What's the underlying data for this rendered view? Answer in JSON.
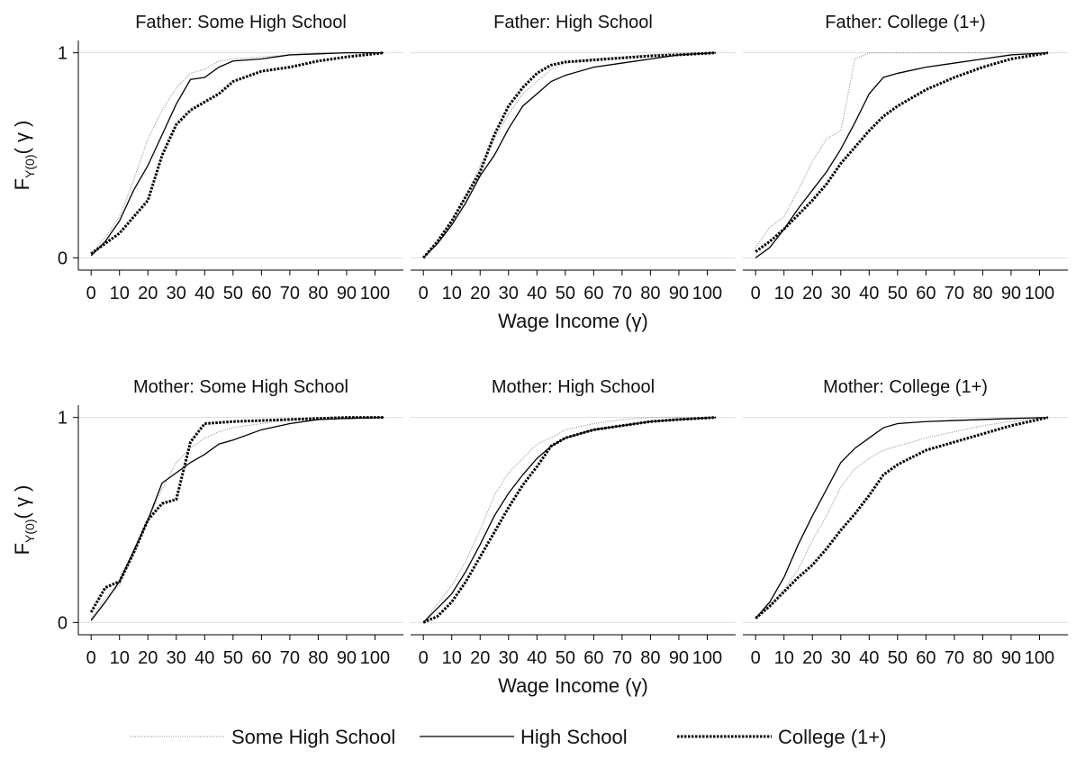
{
  "chart_data": [
    {
      "type": "line",
      "title": "Father: Some High School",
      "ylabel": {
        "text": "F",
        "subscript": "Y(0)",
        "suffix": "( γ )"
      },
      "x": [
        0,
        5,
        10,
        15,
        20,
        25,
        30,
        35,
        40,
        45,
        50,
        60,
        70,
        80,
        90,
        103
      ],
      "xlim": [
        -4.5,
        110
      ],
      "xticks": [
        0,
        10,
        20,
        30,
        40,
        50,
        60,
        70,
        80,
        90,
        100
      ],
      "ylim": [
        -0.06,
        1.06
      ],
      "yticks": [
        0,
        1
      ],
      "grid": true,
      "series": [
        {
          "style": "dotted",
          "values": [
            0.02,
            0.1,
            0.2,
            0.38,
            0.58,
            0.72,
            0.83,
            0.9,
            0.92,
            0.96,
            0.97,
            0.98,
            0.99,
            1,
            1,
            1
          ]
        },
        {
          "style": "solid",
          "values": [
            0.01,
            0.08,
            0.18,
            0.33,
            0.45,
            0.6,
            0.75,
            0.87,
            0.88,
            0.93,
            0.96,
            0.97,
            0.99,
            0.995,
            1,
            1
          ]
        },
        {
          "style": "dashed",
          "values": [
            0.02,
            0.07,
            0.12,
            0.2,
            0.28,
            0.5,
            0.65,
            0.72,
            0.76,
            0.8,
            0.86,
            0.91,
            0.93,
            0.96,
            0.98,
            1
          ]
        }
      ]
    },
    {
      "type": "line",
      "title": "Father: High School",
      "xlabel": "Wage Income (γ)",
      "x": [
        0,
        5,
        10,
        15,
        20,
        25,
        30,
        35,
        40,
        45,
        50,
        60,
        70,
        80,
        90,
        103
      ],
      "xlim": [
        -4.5,
        110
      ],
      "xticks": [
        0,
        10,
        20,
        30,
        40,
        50,
        60,
        70,
        80,
        90,
        100
      ],
      "ylim": [
        -0.06,
        1.06
      ],
      "yticks": [
        0,
        1
      ],
      "grid": true,
      "series": [
        {
          "style": "dotted",
          "values": [
            0,
            0.07,
            0.17,
            0.3,
            0.45,
            0.58,
            0.7,
            0.8,
            0.86,
            0.92,
            0.95,
            0.97,
            0.98,
            0.99,
            1,
            1
          ]
        },
        {
          "style": "solid",
          "values": [
            0,
            0.07,
            0.16,
            0.27,
            0.4,
            0.5,
            0.63,
            0.74,
            0.8,
            0.86,
            0.89,
            0.93,
            0.95,
            0.97,
            0.99,
            1
          ]
        },
        {
          "style": "dashed",
          "values": [
            0,
            0.08,
            0.18,
            0.3,
            0.42,
            0.6,
            0.74,
            0.83,
            0.9,
            0.94,
            0.955,
            0.965,
            0.975,
            0.985,
            0.99,
            1
          ]
        }
      ]
    },
    {
      "type": "line",
      "title": "Father: College (1+)",
      "x": [
        0,
        5,
        10,
        15,
        20,
        25,
        30,
        35,
        40,
        45,
        50,
        60,
        70,
        80,
        90,
        103
      ],
      "xlim": [
        -4.5,
        110
      ],
      "xticks": [
        0,
        10,
        20,
        30,
        40,
        50,
        60,
        70,
        80,
        90,
        100
      ],
      "ylim": [
        -0.06,
        1.06
      ],
      "yticks": [
        0,
        1
      ],
      "grid": true,
      "series": [
        {
          "style": "dotted",
          "values": [
            0.05,
            0.15,
            0.2,
            0.33,
            0.47,
            0.58,
            0.62,
            0.97,
            1,
            1,
            1,
            1,
            1,
            1,
            1,
            1
          ]
        },
        {
          "style": "solid",
          "values": [
            0,
            0.05,
            0.14,
            0.24,
            0.33,
            0.42,
            0.53,
            0.66,
            0.8,
            0.88,
            0.9,
            0.93,
            0.95,
            0.97,
            0.99,
            1
          ]
        },
        {
          "style": "dashed",
          "values": [
            0.03,
            0.08,
            0.14,
            0.21,
            0.28,
            0.36,
            0.46,
            0.54,
            0.62,
            0.69,
            0.74,
            0.82,
            0.88,
            0.93,
            0.97,
            1
          ]
        }
      ]
    },
    {
      "type": "line",
      "title": "Mother: Some High School",
      "ylabel": {
        "text": "F",
        "subscript": "Y(0)",
        "suffix": "( γ )"
      },
      "x": [
        0,
        5,
        10,
        15,
        20,
        25,
        30,
        35,
        40,
        45,
        50,
        60,
        70,
        80,
        90,
        103
      ],
      "xlim": [
        -4.5,
        110
      ],
      "xticks": [
        0,
        10,
        20,
        30,
        40,
        50,
        60,
        70,
        80,
        90,
        100
      ],
      "ylim": [
        -0.06,
        1.06
      ],
      "yticks": [
        0,
        1
      ],
      "grid": true,
      "series": [
        {
          "style": "dotted",
          "values": [
            0.02,
            0.12,
            0.18,
            0.33,
            0.5,
            0.65,
            0.78,
            0.85,
            0.9,
            0.93,
            0.95,
            0.97,
            0.99,
            1,
            1,
            1
          ]
        },
        {
          "style": "solid",
          "values": [
            0.01,
            0.1,
            0.2,
            0.35,
            0.5,
            0.68,
            0.73,
            0.78,
            0.82,
            0.87,
            0.89,
            0.94,
            0.97,
            0.99,
            0.995,
            1
          ]
        },
        {
          "style": "dashed",
          "values": [
            0.05,
            0.17,
            0.2,
            0.34,
            0.5,
            0.58,
            0.6,
            0.88,
            0.97,
            0.975,
            0.98,
            0.985,
            0.99,
            0.995,
            1,
            1
          ]
        }
      ]
    },
    {
      "type": "line",
      "title": "Mother: High School",
      "xlabel": "Wage Income (γ)",
      "x": [
        0,
        5,
        10,
        15,
        20,
        25,
        30,
        35,
        40,
        45,
        50,
        60,
        70,
        80,
        90,
        103
      ],
      "xlim": [
        -4.5,
        110
      ],
      "xticks": [
        0,
        10,
        20,
        30,
        40,
        50,
        60,
        70,
        80,
        90,
        100
      ],
      "ylim": [
        -0.06,
        1.06
      ],
      "yticks": [
        0,
        1
      ],
      "grid": true,
      "series": [
        {
          "style": "dotted",
          "values": [
            0,
            0.09,
            0.18,
            0.3,
            0.45,
            0.62,
            0.73,
            0.8,
            0.87,
            0.9,
            0.94,
            0.97,
            0.99,
            1,
            1,
            1
          ]
        },
        {
          "style": "solid",
          "values": [
            0,
            0.07,
            0.14,
            0.25,
            0.38,
            0.52,
            0.63,
            0.72,
            0.8,
            0.86,
            0.9,
            0.94,
            0.96,
            0.98,
            0.99,
            1
          ]
        },
        {
          "style": "dashed",
          "values": [
            0,
            0.03,
            0.1,
            0.2,
            0.32,
            0.44,
            0.56,
            0.67,
            0.76,
            0.86,
            0.9,
            0.94,
            0.96,
            0.98,
            0.99,
            1
          ]
        }
      ]
    },
    {
      "type": "line",
      "title": "Mother: College (1+)",
      "x": [
        0,
        5,
        10,
        15,
        20,
        25,
        30,
        35,
        40,
        45,
        50,
        60,
        70,
        80,
        90,
        103
      ],
      "xlim": [
        -4.5,
        110
      ],
      "xticks": [
        0,
        10,
        20,
        30,
        40,
        50,
        60,
        70,
        80,
        90,
        100
      ],
      "ylim": [
        -0.06,
        1.06
      ],
      "yticks": [
        0,
        1
      ],
      "grid": true,
      "series": [
        {
          "style": "dotted",
          "values": [
            0.02,
            0.08,
            0.16,
            0.26,
            0.4,
            0.52,
            0.66,
            0.75,
            0.8,
            0.84,
            0.86,
            0.9,
            0.93,
            0.96,
            0.98,
            1
          ]
        },
        {
          "style": "solid",
          "values": [
            0.02,
            0.1,
            0.22,
            0.38,
            0.52,
            0.65,
            0.78,
            0.85,
            0.9,
            0.95,
            0.97,
            0.98,
            0.985,
            0.99,
            0.995,
            1
          ]
        },
        {
          "style": "dashed",
          "values": [
            0.02,
            0.08,
            0.15,
            0.22,
            0.28,
            0.36,
            0.45,
            0.53,
            0.62,
            0.72,
            0.77,
            0.84,
            0.88,
            0.92,
            0.96,
            1
          ]
        }
      ]
    }
  ],
  "legend": [
    {
      "name": "Some High School",
      "style": "dotted"
    },
    {
      "name": "High School",
      "style": "solid"
    },
    {
      "name": "College (1+)",
      "style": "dashed"
    }
  ]
}
